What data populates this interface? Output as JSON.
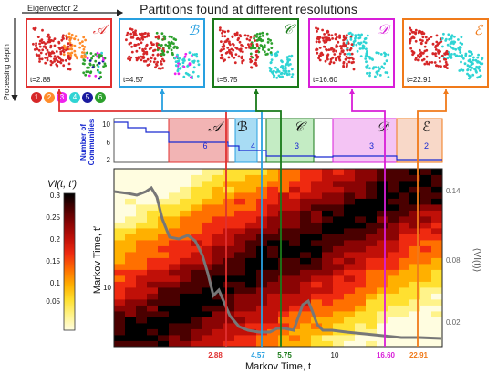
{
  "title": "Partitions found at different resolutions",
  "axis_eigen": "Eigenvector 2",
  "axis_depth": "Processing depth",
  "legend_numbers": [
    "1",
    "2",
    "3",
    "4",
    "5",
    "6"
  ],
  "legend_colors": [
    "#d62728",
    "#ff8c2a",
    "#ee22ee",
    "#2fd4d4",
    "#1a1a9e",
    "#2ca02c"
  ],
  "panels": [
    {
      "letter": "𝒜",
      "t": "t=2.88",
      "color": "#e03030"
    },
    {
      "letter": "ℬ",
      "t": "t=4.57",
      "color": "#28a0e0"
    },
    {
      "letter": "𝒞",
      "t": "t=5.75",
      "color": "#1a7a1a"
    },
    {
      "letter": "𝒟",
      "t": "t=16.60",
      "color": "#d81ed8"
    },
    {
      "letter": "ℰ",
      "t": "t=22.91",
      "color": "#f07a1a"
    }
  ],
  "communities_label": [
    "Number of",
    "Communities"
  ],
  "community_ticks": [
    "10",
    "6",
    "2"
  ],
  "regions": [
    "𝒜",
    "ℬ",
    "𝒞",
    "𝒟",
    "ℰ"
  ],
  "region_counts": [
    "6",
    "4",
    "3",
    "3",
    "2"
  ],
  "colorbar_title": "VI(t, t′)",
  "colorbar_ticks": [
    "0.3",
    "0.25",
    "0.2",
    "0.15",
    "0.1",
    "0.05"
  ],
  "right_ticks": [
    "0.14",
    "0.08",
    "0.02"
  ],
  "right_label": "⟨VI(t)⟩",
  "ylabel": "Markov Time, t′",
  "y_tick": "10",
  "xlabel": "Markov Time, t",
  "x_marks": [
    {
      "v": "2.88",
      "color": "#e03030"
    },
    {
      "v": "4.57",
      "color": "#28a0e0"
    },
    {
      "v": "5.75",
      "color": "#1a7a1a"
    },
    {
      "v": "10",
      "color": "#111111"
    },
    {
      "v": "16.60",
      "color": "#d81ed8"
    },
    {
      "v": "22.91",
      "color": "#f07a1a"
    }
  ]
}
